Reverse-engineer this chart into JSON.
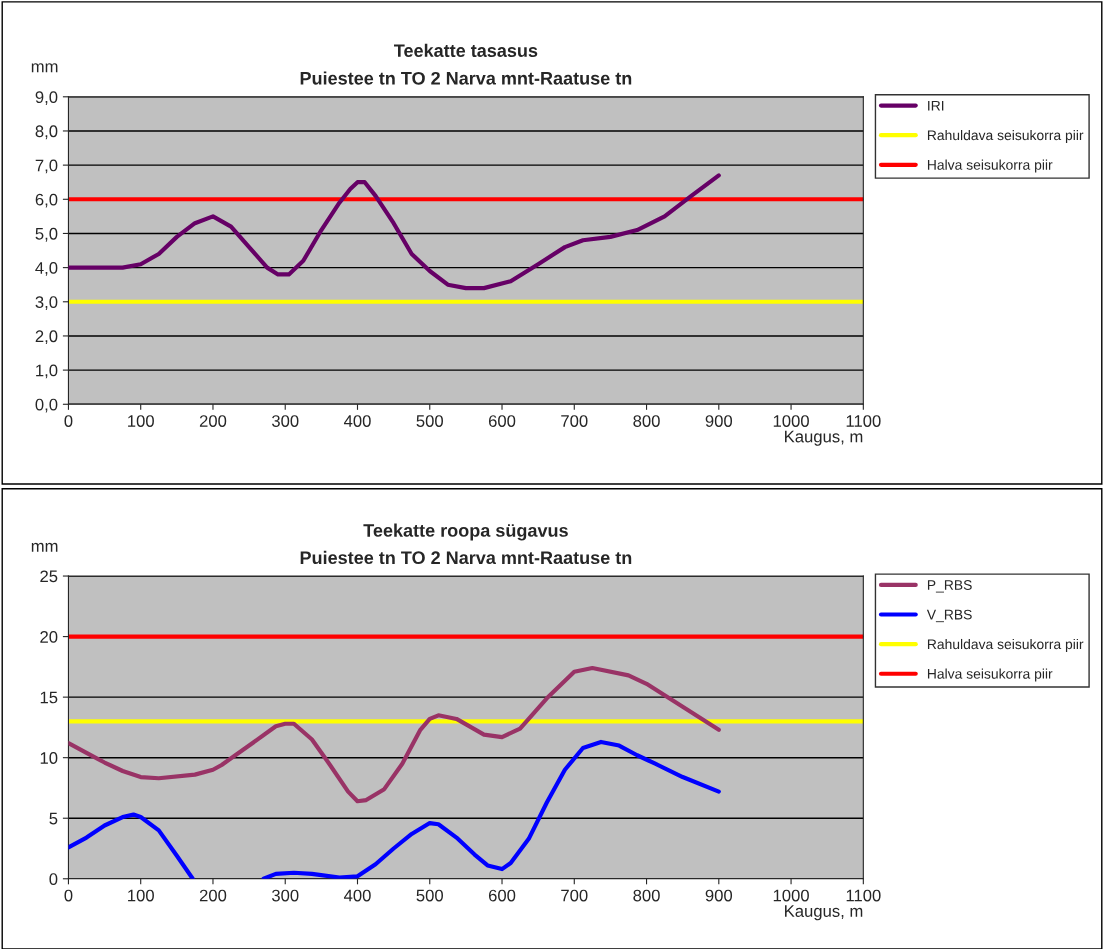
{
  "chart_data": [
    {
      "type": "line",
      "title": "Teekatte tasasus",
      "subtitle": "Puiestee tn TO 2 Narva mnt-Raatuse tn",
      "xlabel": "Kaugus, m",
      "ylabel": "mm",
      "xlim": [
        0,
        1100
      ],
      "xticks": [
        0,
        100,
        200,
        300,
        400,
        500,
        600,
        700,
        800,
        900,
        1000,
        1100
      ],
      "ylim": [
        0,
        9
      ],
      "yticks": [
        {
          "value": 0,
          "label": "0,0"
        },
        {
          "value": 1,
          "label": "1,0"
        },
        {
          "value": 2,
          "label": "2,0"
        },
        {
          "value": 3,
          "label": "3,0"
        },
        {
          "value": 4,
          "label": "4,0"
        },
        {
          "value": 5,
          "label": "5,0"
        },
        {
          "value": 6,
          "label": "6,0"
        },
        {
          "value": 7,
          "label": "7,0"
        },
        {
          "value": 8,
          "label": "8,0"
        },
        {
          "value": 9,
          "label": "9,0"
        }
      ],
      "grid": "y",
      "legend": "top right",
      "marker": "none",
      "line_style": "solid",
      "x": [
        0,
        25,
        50,
        75,
        100,
        125,
        150,
        175,
        200,
        225,
        250,
        275,
        290,
        305,
        325,
        350,
        375,
        390,
        400,
        410,
        425,
        450,
        475,
        500,
        525,
        550,
        575,
        612,
        650,
        687,
        712,
        750,
        787,
        825,
        862,
        900
      ],
      "series": [
        {
          "name": "IRI",
          "color": "#660066",
          "values": [
            4.0,
            4.0,
            4.0,
            4.0,
            4.1,
            4.4,
            4.9,
            5.3,
            5.5,
            5.2,
            4.6,
            4.0,
            3.8,
            3.8,
            4.2,
            5.1,
            5.9,
            6.3,
            6.5,
            6.5,
            6.1,
            5.3,
            4.4,
            3.9,
            3.5,
            3.4,
            3.4,
            3.6,
            4.1,
            4.6,
            4.8,
            4.9,
            5.1,
            5.5,
            6.1,
            6.7
          ]
        }
      ],
      "ref_lines": [
        {
          "axis": "y",
          "value": 3,
          "label": "Rahuldava seisukorra piir",
          "color": "#ffff00"
        },
        {
          "axis": "y",
          "value": 6,
          "label": "Halva seisukorra piir",
          "color": "#ff0000"
        }
      ]
    },
    {
      "type": "line",
      "title": "Teekatte roopa sügavus",
      "subtitle": "Puiestee tn TO 2 Narva mnt-Raatuse tn",
      "xlabel": "Kaugus, m",
      "ylabel": "mm",
      "xlim": [
        0,
        1100
      ],
      "xticks": [
        0,
        100,
        200,
        300,
        400,
        500,
        600,
        700,
        800,
        900,
        1000,
        1100
      ],
      "ylim": [
        0,
        25
      ],
      "yticks": [
        0,
        5,
        10,
        15,
        20,
        25
      ],
      "grid": "y",
      "legend": "top right",
      "marker": "none",
      "line_style": "solid",
      "series": [
        {
          "name": "P_RBS",
          "color": "#993366",
          "x": [
            0,
            25,
            50,
            75,
            100,
            125,
            175,
            200,
            212,
            250,
            287,
            300,
            312,
            337,
            362,
            387,
            400,
            412,
            437,
            462,
            487,
            500,
            512,
            537,
            575,
            600,
            625,
            662,
            700,
            725,
            775,
            800,
            850,
            900
          ],
          "values": [
            11.2,
            10.4,
            9.6,
            8.9,
            8.4,
            8.3,
            8.6,
            9.0,
            9.4,
            11.0,
            12.6,
            12.8,
            12.8,
            11.5,
            9.4,
            7.2,
            6.4,
            6.5,
            7.4,
            9.5,
            12.3,
            13.2,
            13.5,
            13.2,
            11.9,
            11.7,
            12.4,
            14.9,
            17.1,
            17.4,
            16.8,
            16.1,
            14.2,
            12.3
          ]
        },
        {
          "name": "V_RBS",
          "color": "#0000ff",
          "x": [
            0,
            25,
            50,
            75,
            90,
            100,
            125,
            150,
            172,
            225,
            270,
            287,
            312,
            337,
            375,
            400,
            425,
            450,
            475,
            500,
            512,
            537,
            562,
            580,
            600,
            612,
            637,
            662,
            687,
            712,
            737,
            762,
            787,
            812,
            850,
            900
          ],
          "values": [
            2.6,
            3.4,
            4.4,
            5.1,
            5.3,
            5.1,
            4.0,
            1.9,
            0.0,
            null,
            0.0,
            0.4,
            0.5,
            0.4,
            0.1,
            0.2,
            1.2,
            2.5,
            3.7,
            4.6,
            4.5,
            3.4,
            2.0,
            1.1,
            0.8,
            1.3,
            3.3,
            6.3,
            9.0,
            10.8,
            11.3,
            11.0,
            10.2,
            9.5,
            8.4,
            7.2
          ]
        }
      ],
      "ref_lines": [
        {
          "axis": "y",
          "value": 13,
          "label": "Rahuldava seisukorra piir",
          "color": "#ffff00"
        },
        {
          "axis": "y",
          "value": 20,
          "label": "Halva seisukorra piir",
          "color": "#ff0000"
        }
      ]
    }
  ]
}
